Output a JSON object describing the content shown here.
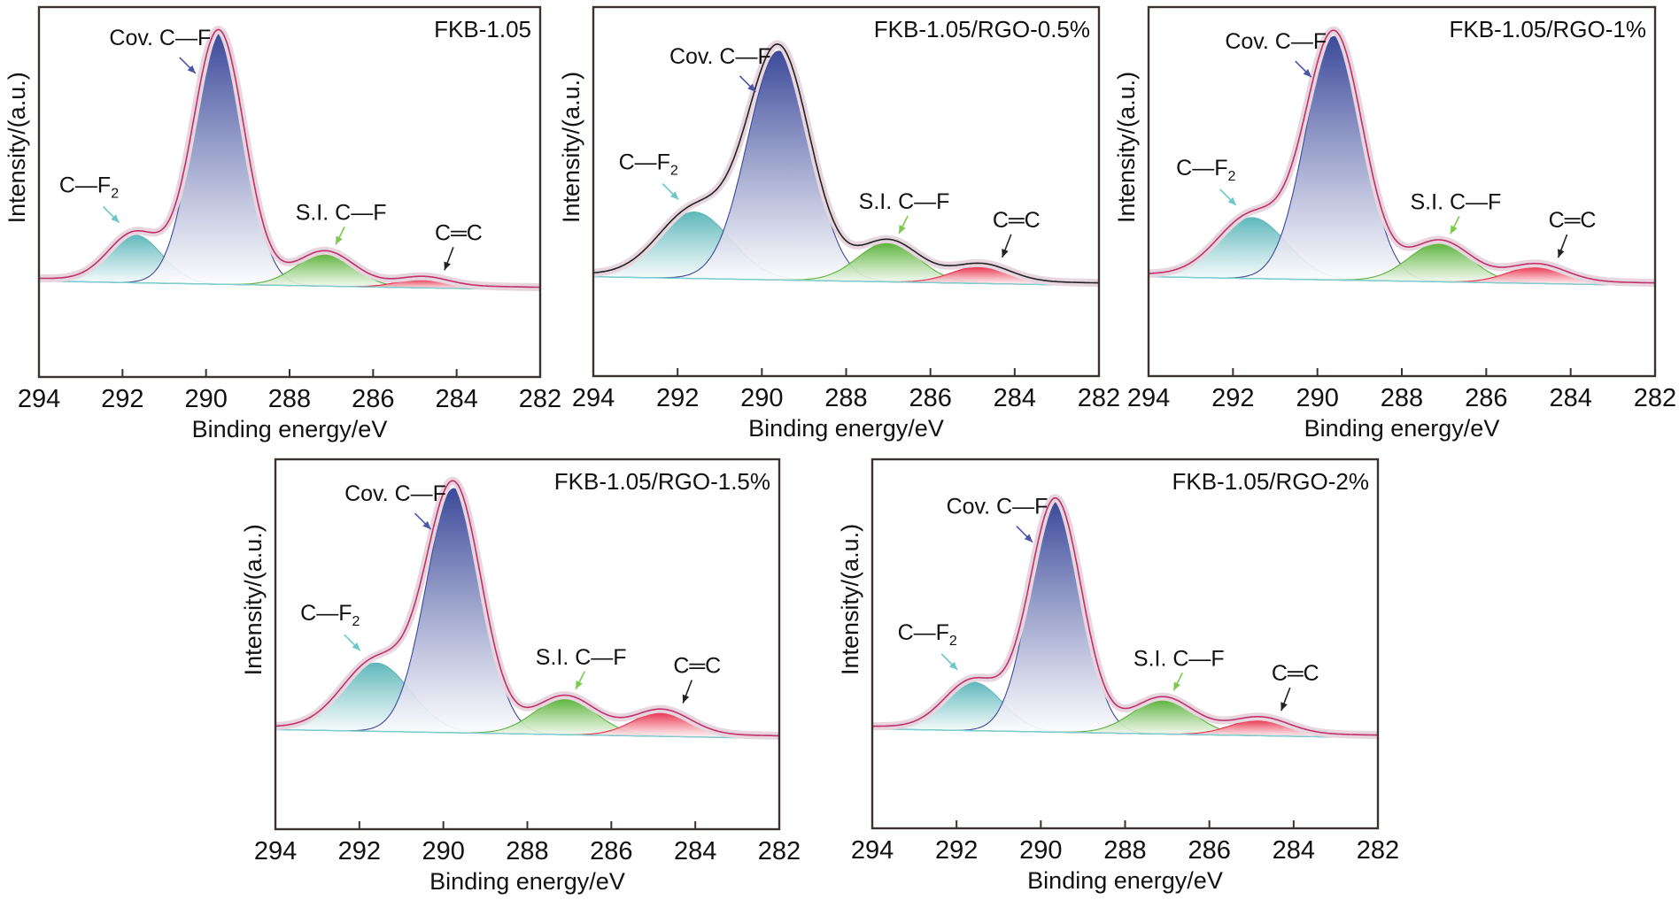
{
  "chart_data": [
    {
      "type": "area",
      "title": "FKB-1.05",
      "xlabel": "Binding energy/eV",
      "ylabel": "Intensity/(a.u.)",
      "xlim": [
        294,
        282
      ],
      "x_ticks": [
        "294",
        "292",
        "290",
        "288",
        "286",
        "284",
        "282"
      ],
      "grid": false,
      "envelope_color": "#c0306a",
      "peaks": [
        {
          "name": "C—F2",
          "label": "C—F",
          "sub": "2",
          "center": 291.7,
          "height": 0.19,
          "fwhm": 1.5,
          "color": "#5fb8bb",
          "arrow": "#6cc7c9"
        },
        {
          "name": "Cov. C—F",
          "label": "Cov. C—F",
          "sub": "",
          "center": 289.7,
          "height": 1.0,
          "fwhm": 1.45,
          "color": "#3c4a9a",
          "arrow": "#4a55a8"
        },
        {
          "name": "S.I. C—F",
          "label": "S.I. C—F",
          "sub": "",
          "center": 287.15,
          "height": 0.13,
          "fwhm": 1.6,
          "color": "#5bb33a",
          "arrow": "#7cc94e"
        },
        {
          "name": "C═C",
          "label": "C═C",
          "sub": "",
          "center": 284.8,
          "height": 0.035,
          "fwhm": 1.4,
          "color": "#e8304a",
          "arrow": "#222222"
        }
      ]
    },
    {
      "type": "area",
      "title": "FKB-1.05/RGO-0.5%",
      "xlabel": "Binding energy/eV",
      "ylabel": "Intensity/(a.u.)",
      "xlim": [
        294,
        282
      ],
      "x_ticks": [
        "294",
        "292",
        "290",
        "288",
        "286",
        "284",
        "282"
      ],
      "grid": false,
      "envelope_color": "#222222",
      "peaks": [
        {
          "name": "C—F2",
          "label": "C—F",
          "sub": "2",
          "center": 291.6,
          "height": 0.27,
          "fwhm": 2.0,
          "color": "#5fb8bb",
          "arrow": "#6cc7c9"
        },
        {
          "name": "Cov. C—F",
          "label": "Cov. C—F",
          "sub": "",
          "center": 289.6,
          "height": 0.93,
          "fwhm": 1.75,
          "color": "#3c4a9a",
          "arrow": "#4a55a8"
        },
        {
          "name": "S.I. C—F",
          "label": "S.I. C—F",
          "sub": "",
          "center": 287.0,
          "height": 0.16,
          "fwhm": 1.7,
          "color": "#5bb33a",
          "arrow": "#7cc94e"
        },
        {
          "name": "C═C",
          "label": "C═C",
          "sub": "",
          "center": 284.8,
          "height": 0.07,
          "fwhm": 1.6,
          "color": "#e8304a",
          "arrow": "#222222"
        }
      ]
    },
    {
      "type": "area",
      "title": "FKB-1.05/RGO-1%",
      "xlabel": "Binding energy/eV",
      "ylabel": "Intensity/(a.u.)",
      "xlim": [
        294,
        282
      ],
      "x_ticks": [
        "294",
        "292",
        "290",
        "288",
        "286",
        "284",
        "282"
      ],
      "grid": false,
      "envelope_color": "#c0306a",
      "peaks": [
        {
          "name": "C—F2",
          "label": "C—F",
          "sub": "2",
          "center": 291.55,
          "height": 0.25,
          "fwhm": 1.9,
          "color": "#5fb8bb",
          "arrow": "#6cc7c9"
        },
        {
          "name": "Cov. C—F",
          "label": "Cov. C—F",
          "sub": "",
          "center": 289.6,
          "height": 1.0,
          "fwhm": 1.6,
          "color": "#3c4a9a",
          "arrow": "#4a55a8"
        },
        {
          "name": "S.I. C—F",
          "label": "S.I. C—F",
          "sub": "",
          "center": 287.1,
          "height": 0.16,
          "fwhm": 1.7,
          "color": "#5bb33a",
          "arrow": "#7cc94e"
        },
        {
          "name": "C═C",
          "label": "C═C",
          "sub": "",
          "center": 284.8,
          "height": 0.07,
          "fwhm": 1.6,
          "color": "#e8304a",
          "arrow": "#222222"
        }
      ]
    },
    {
      "type": "area",
      "title": "FKB-1.05/RGO-1.5%",
      "xlabel": "Binding energy/eV",
      "ylabel": "Intensity/(a.u.)",
      "xlim": [
        294,
        282
      ],
      "x_ticks": [
        "294",
        "292",
        "290",
        "288",
        "286",
        "284",
        "282"
      ],
      "grid": false,
      "envelope_color": "#c0306a",
      "peaks": [
        {
          "name": "C—F2",
          "label": "C—F",
          "sub": "2",
          "center": 291.6,
          "height": 0.28,
          "fwhm": 1.9,
          "color": "#5fb8bb",
          "arrow": "#6cc7c9"
        },
        {
          "name": "Cov. C—F",
          "label": "Cov. C—F",
          "sub": "",
          "center": 289.75,
          "height": 1.0,
          "fwhm": 1.55,
          "color": "#3c4a9a",
          "arrow": "#4a55a8"
        },
        {
          "name": "S.I. C—F",
          "label": "S.I. C—F",
          "sub": "",
          "center": 287.1,
          "height": 0.15,
          "fwhm": 1.7,
          "color": "#5bb33a",
          "arrow": "#7cc94e"
        },
        {
          "name": "C═C",
          "label": "C═C",
          "sub": "",
          "center": 284.8,
          "height": 0.1,
          "fwhm": 1.6,
          "color": "#e8304a",
          "arrow": "#222222"
        }
      ]
    },
    {
      "type": "area",
      "title": "FKB-1.05/RGO-2%",
      "xlabel": "Binding energy/eV",
      "ylabel": "Intensity/(a.u.)",
      "xlim": [
        294,
        282
      ],
      "x_ticks": [
        "294",
        "292",
        "290",
        "288",
        "286",
        "284",
        "282"
      ],
      "grid": false,
      "envelope_color": "#c0306a",
      "peaks": [
        {
          "name": "C—F2",
          "label": "C—F",
          "sub": "2",
          "center": 291.6,
          "height": 0.21,
          "fwhm": 1.6,
          "color": "#5fb8bb",
          "arrow": "#6cc7c9"
        },
        {
          "name": "Cov. C—F",
          "label": "Cov. C—F",
          "sub": "",
          "center": 289.65,
          "height": 1.0,
          "fwhm": 1.45,
          "color": "#3c4a9a",
          "arrow": "#4a55a8"
        },
        {
          "name": "S.I. C—F",
          "label": "S.I. C—F",
          "sub": "",
          "center": 287.1,
          "height": 0.15,
          "fwhm": 1.7,
          "color": "#5bb33a",
          "arrow": "#7cc94e"
        },
        {
          "name": "C═C",
          "label": "C═C",
          "sub": "",
          "center": 284.8,
          "height": 0.07,
          "fwhm": 1.6,
          "color": "#e8304a",
          "arrow": "#222222"
        }
      ]
    }
  ]
}
